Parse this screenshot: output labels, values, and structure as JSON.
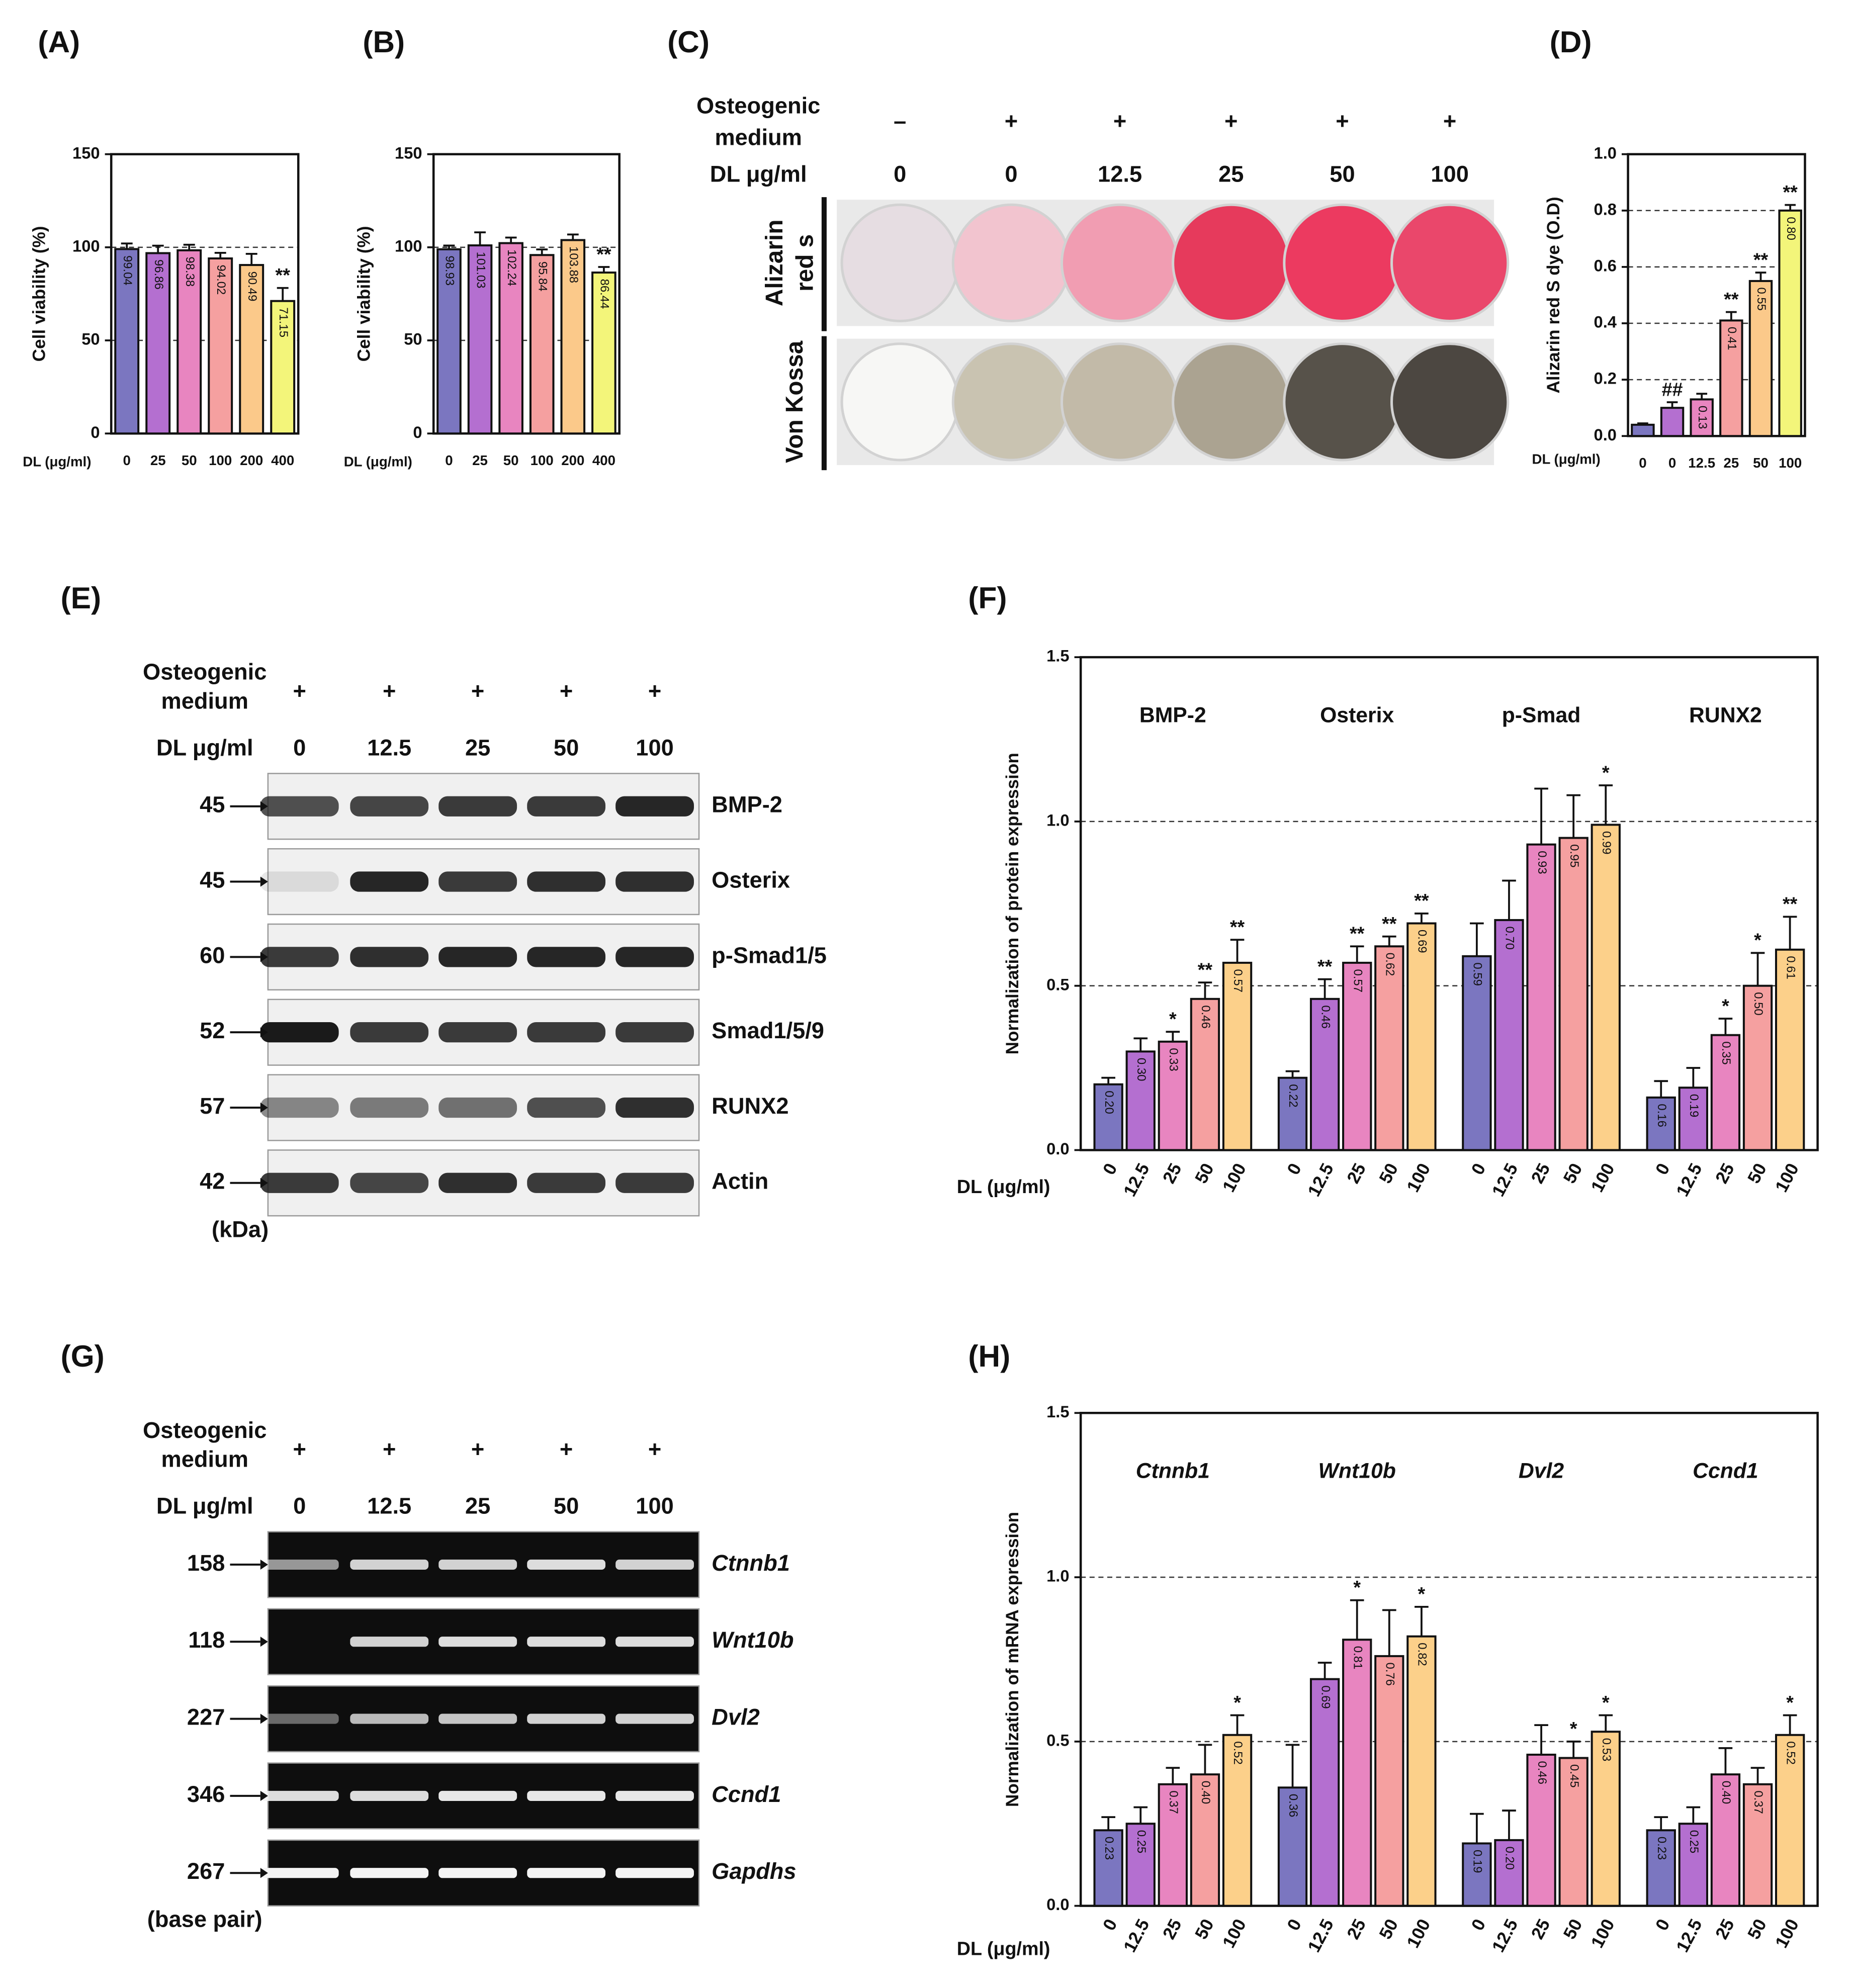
{
  "chart_data": [
    {
      "type": "bar",
      "panel_label": "(A)",
      "ylabel": "Cell viability (%)",
      "xlabel": "DL (μg/ml)",
      "categories": [
        "0",
        "25",
        "50",
        "100",
        "200",
        "400"
      ],
      "values": [
        99.04,
        96.86,
        98.38,
        94.02,
        90.49,
        71.15
      ],
      "errors": [
        3,
        4,
        3,
        3,
        6,
        7
      ],
      "annotations": [
        null,
        null,
        null,
        null,
        null,
        "**"
      ],
      "colors": [
        "#7b76c0",
        "#b46fd0",
        "#e885c0",
        "#f5a0a0",
        "#fbc98a",
        "#f3f57a"
      ],
      "ylim": [
        0,
        150
      ],
      "yticks": [
        0,
        50,
        100,
        150
      ],
      "grid": true
    },
    {
      "type": "bar",
      "panel_label": "(B)",
      "ylabel": "Cell viability (%)",
      "xlabel": "DL (μg/ml)",
      "categories": [
        "0",
        "25",
        "50",
        "100",
        "200",
        "400"
      ],
      "values": [
        98.93,
        101.03,
        102.24,
        95.84,
        103.88,
        86.44
      ],
      "errors": [
        2,
        7,
        3,
        3,
        3,
        3
      ],
      "annotations": [
        null,
        null,
        null,
        null,
        null,
        "**"
      ],
      "colors": [
        "#7b76c0",
        "#b46fd0",
        "#e885c0",
        "#f5a0a0",
        "#fbc98a",
        "#f3f57a"
      ],
      "ylim": [
        0,
        150
      ],
      "yticks": [
        0,
        50,
        100,
        150
      ],
      "grid": true
    },
    {
      "type": "bar",
      "panel_label": "(D)",
      "ylabel": "Alizarin red S dye (O.D)",
      "xlabel": "DL (μg/ml)",
      "categories": [
        "0",
        "0",
        "12.5",
        "25",
        "50",
        "100"
      ],
      "values": [
        0.04,
        0.1,
        0.13,
        0.41,
        0.55,
        0.8
      ],
      "value_labels": [
        null,
        null,
        "0.13",
        "0.41",
        "0.55",
        "0.80"
      ],
      "errors": [
        0.005,
        0.02,
        0.02,
        0.03,
        0.03,
        0.02
      ],
      "annotations": [
        null,
        "##",
        null,
        "**",
        "**",
        "**"
      ],
      "colors": [
        "#7b76c0",
        "#b46fd0",
        "#e885c0",
        "#f5a0a0",
        "#fbc98a",
        "#f3f57a"
      ],
      "ylim": [
        0,
        1
      ],
      "yticks": [
        {
          "value": 0,
          "label": "0.0"
        },
        0.2,
        0.4,
        0.6,
        0.8,
        {
          "value": 1,
          "label": "1.0"
        }
      ],
      "grid": true
    },
    {
      "type": "grouped_bar",
      "panel_label": "(F)",
      "ylabel": "Normalization of protein expression",
      "xlabel": "DL (μg/ml)",
      "categories": [
        "0",
        "12.5",
        "25",
        "50",
        "100"
      ],
      "colors": [
        "#7b76c0",
        "#b46fd0",
        "#e885c0",
        "#f5a0a0",
        "#fcd08a"
      ],
      "italic_groups": false,
      "groups": [
        {
          "name": "BMP-2",
          "values": [
            0.2,
            0.3,
            0.33,
            0.46,
            0.57
          ],
          "value_labels": [
            "0.20",
            "0.30",
            "0.33",
            "0.46",
            "0.57"
          ],
          "errors": [
            0.02,
            0.04,
            0.03,
            0.05,
            0.07
          ],
          "annotations": [
            null,
            null,
            "*",
            "**",
            "**"
          ]
        },
        {
          "name": "Osterix",
          "values": [
            0.22,
            0.46,
            0.57,
            0.62,
            0.69
          ],
          "value_labels": [
            "0.22",
            "0.46",
            "0.57",
            "0.62",
            "0.69"
          ],
          "errors": [
            0.02,
            0.06,
            0.05,
            0.03,
            0.03
          ],
          "annotations": [
            null,
            "**",
            "**",
            "**",
            "**"
          ]
        },
        {
          "name": "p-Smad",
          "values": [
            0.59,
            0.7,
            0.93,
            0.95,
            0.99
          ],
          "value_labels": [
            "0.59",
            "0.70",
            "0.93",
            "0.95",
            "0.99"
          ],
          "errors": [
            0.1,
            0.12,
            0.17,
            0.13,
            0.12
          ],
          "annotations": [
            null,
            null,
            null,
            null,
            "*"
          ]
        },
        {
          "name": "RUNX2",
          "values": [
            0.16,
            0.19,
            0.35,
            0.5,
            0.61
          ],
          "value_labels": [
            "0.16",
            "0.19",
            "0.35",
            "0.50",
            "0.61"
          ],
          "errors": [
            0.05,
            0.06,
            0.05,
            0.1,
            0.1
          ],
          "annotations": [
            null,
            null,
            "*",
            "*",
            "**"
          ]
        }
      ],
      "ylim": [
        0,
        1.5
      ],
      "yticks": [
        {
          "value": 0,
          "label": "0.0"
        },
        0.5,
        {
          "value": 1,
          "label": "1.0"
        },
        1.5
      ],
      "grid": true
    },
    {
      "type": "grouped_bar",
      "panel_label": "(H)",
      "ylabel": "Normalization of mRNA expression",
      "xlabel": "DL (μg/ml)",
      "categories": [
        "0",
        "12.5",
        "25",
        "50",
        "100"
      ],
      "colors": [
        "#7b76c0",
        "#b46fd0",
        "#e885c0",
        "#f5a0a0",
        "#fcd08a"
      ],
      "italic_groups": true,
      "groups": [
        {
          "name": "Ctnnb1",
          "values": [
            0.23,
            0.25,
            0.37,
            0.4,
            0.52
          ],
          "value_labels": [
            "0.23",
            "0.25",
            "0.37",
            "0.40",
            "0.52"
          ],
          "errors": [
            0.04,
            0.05,
            0.05,
            0.09,
            0.06
          ],
          "annotations": [
            null,
            null,
            null,
            null,
            "*"
          ]
        },
        {
          "name": "Wnt10b",
          "values": [
            0.36,
            0.69,
            0.81,
            0.76,
            0.82
          ],
          "value_labels": [
            "0.36",
            "0.69",
            "0.81",
            "0.76",
            "0.82"
          ],
          "errors": [
            0.13,
            0.05,
            0.12,
            0.14,
            0.09
          ],
          "annotations": [
            null,
            null,
            "*",
            null,
            "*"
          ]
        },
        {
          "name": "Dvl2",
          "values": [
            0.19,
            0.2,
            0.46,
            0.45,
            0.53
          ],
          "value_labels": [
            "0.19",
            "0.20",
            "0.46",
            "0.45",
            "0.53"
          ],
          "errors": [
            0.09,
            0.09,
            0.09,
            0.05,
            0.05
          ],
          "annotations": [
            null,
            null,
            null,
            "*",
            "*"
          ]
        },
        {
          "name": "Ccnd1",
          "values": [
            0.23,
            0.25,
            0.4,
            0.37,
            0.52
          ],
          "value_labels": [
            "0.23",
            "0.25",
            "0.40",
            "0.37",
            "0.52"
          ],
          "errors": [
            0.04,
            0.05,
            0.08,
            0.05,
            0.06
          ],
          "annotations": [
            null,
            null,
            null,
            null,
            "*"
          ]
        }
      ],
      "ylim": [
        0,
        1.5
      ],
      "yticks": [
        {
          "value": 0,
          "label": "0.0"
        },
        0.5,
        {
          "value": 1,
          "label": "1.0"
        },
        1.5
      ],
      "grid": true
    }
  ],
  "plate": {
    "panel_label": "(C)",
    "header_label": [
      "Osteogenic",
      "medium"
    ],
    "medium": [
      "–",
      "+",
      "+",
      "+",
      "+",
      "+"
    ],
    "dose_label": "DL μg/ml",
    "doses": [
      "0",
      "0",
      "12.5",
      "25",
      "50",
      "100"
    ],
    "rows": [
      [
        "Alizarin",
        "red s"
      ],
      [
        "Von Kossa"
      ]
    ]
  },
  "blots": [
    {
      "panel_label": "(E)",
      "header_label": [
        "Osteogenic",
        "medium"
      ],
      "medium": [
        "+",
        "+",
        "+",
        "+",
        "+"
      ],
      "dose_label": "DL μg/ml",
      "doses": [
        "0",
        "12.5",
        "25",
        "50",
        "100"
      ],
      "sizes": [
        "45",
        "45",
        "60",
        "52",
        "57",
        "42"
      ],
      "names": [
        "BMP-2",
        "Osterix",
        "p-Smad1/5",
        "Smad1/5/9",
        "RUNX2",
        "Actin"
      ],
      "unit": "(kDa)",
      "italic_names": false
    },
    {
      "panel_label": "(G)",
      "header_label": [
        "Osteogenic",
        "medium"
      ],
      "medium": [
        "+",
        "+",
        "+",
        "+",
        "+"
      ],
      "dose_label": "DL μg/ml",
      "doses": [
        "0",
        "12.5",
        "25",
        "50",
        "100"
      ],
      "sizes": [
        "158",
        "118",
        "227",
        "346",
        "267"
      ],
      "names": [
        "Ctnnb1",
        "Wnt10b",
        "Dvl2",
        "Ccnd1",
        "Gapdhs"
      ],
      "unit": "(base pair)",
      "italic_names": true
    }
  ]
}
